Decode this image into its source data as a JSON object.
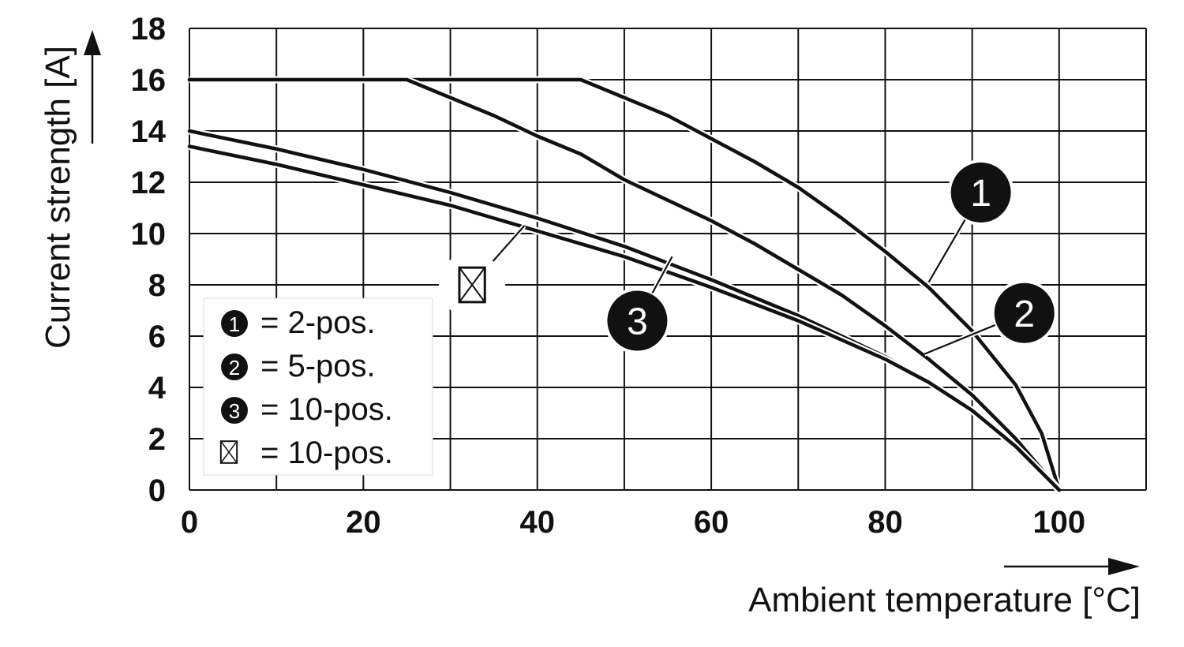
{
  "chart_data": {
    "type": "line",
    "xlabel": "Ambient temperature [°C]",
    "ylabel": "Current strength [A]",
    "xlim": [
      0,
      110
    ],
    "ylim": [
      0,
      18
    ],
    "x_ticks": [
      "0",
      "20",
      "40",
      "60",
      "80",
      "100"
    ],
    "y_ticks": [
      "0",
      "2",
      "4",
      "6",
      "8",
      "10",
      "12",
      "14",
      "16",
      "18"
    ],
    "grid": true,
    "legend_position": "bottom-left",
    "legend": [
      {
        "marker": "1",
        "text": "= 2-pos."
      },
      {
        "marker": "2",
        "text": "= 5-pos."
      },
      {
        "marker": "3",
        "text": "= 10-pos."
      },
      {
        "marker": "box-x",
        "text": "= 10-pos."
      }
    ],
    "series": [
      {
        "marker": "1",
        "x": [
          0,
          45,
          50,
          55,
          60,
          65,
          70,
          75,
          80,
          85,
          90,
          95,
          98,
          100
        ],
        "y": [
          16,
          16,
          15.3,
          14.6,
          13.7,
          12.8,
          11.8,
          10.6,
          9.3,
          7.9,
          6.2,
          4.1,
          2.2,
          0
        ]
      },
      {
        "marker": "2",
        "x": [
          0,
          25,
          30,
          35,
          40,
          45,
          50,
          55,
          60,
          65,
          70,
          75,
          80,
          85,
          90,
          95,
          100
        ],
        "y": [
          16,
          16,
          15.3,
          14.6,
          13.8,
          13.1,
          12.1,
          11.3,
          10.5,
          9.6,
          8.6,
          7.6,
          6.4,
          5.1,
          3.7,
          2.0,
          0
        ]
      },
      {
        "marker": "3",
        "x": [
          0,
          10,
          20,
          30,
          40,
          50,
          60,
          70,
          80,
          85,
          90,
          95,
          100
        ],
        "y": [
          14.0,
          13.3,
          12.5,
          11.6,
          10.6,
          9.5,
          8.2,
          6.8,
          5.2,
          4.2,
          3.1,
          1.7,
          0
        ]
      },
      {
        "marker": "box-x",
        "x": [
          0,
          10,
          20,
          30,
          40,
          50,
          60,
          70,
          80,
          85,
          90,
          95,
          100
        ],
        "y": [
          13.4,
          12.7,
          11.9,
          11.1,
          10.1,
          9.1,
          7.9,
          6.6,
          5.1,
          4.2,
          3.1,
          1.7,
          0
        ]
      }
    ],
    "annotations": [
      {
        "marker": "1",
        "at_x": 85,
        "at_y": 8.1,
        "label_x": 91,
        "label_y": 11.6
      },
      {
        "marker": "2",
        "at_x": 84.5,
        "at_y": 5.3,
        "label_x": 96,
        "label_y": 6.9
      },
      {
        "marker": "3",
        "at_x": 55.5,
        "at_y": 9.1,
        "label_x": 51.5,
        "label_y": 6.6
      },
      {
        "marker": "box-x",
        "at_x": 38.5,
        "at_y": 10.3,
        "label_x": 32.5,
        "label_y": 8.0
      }
    ]
  }
}
